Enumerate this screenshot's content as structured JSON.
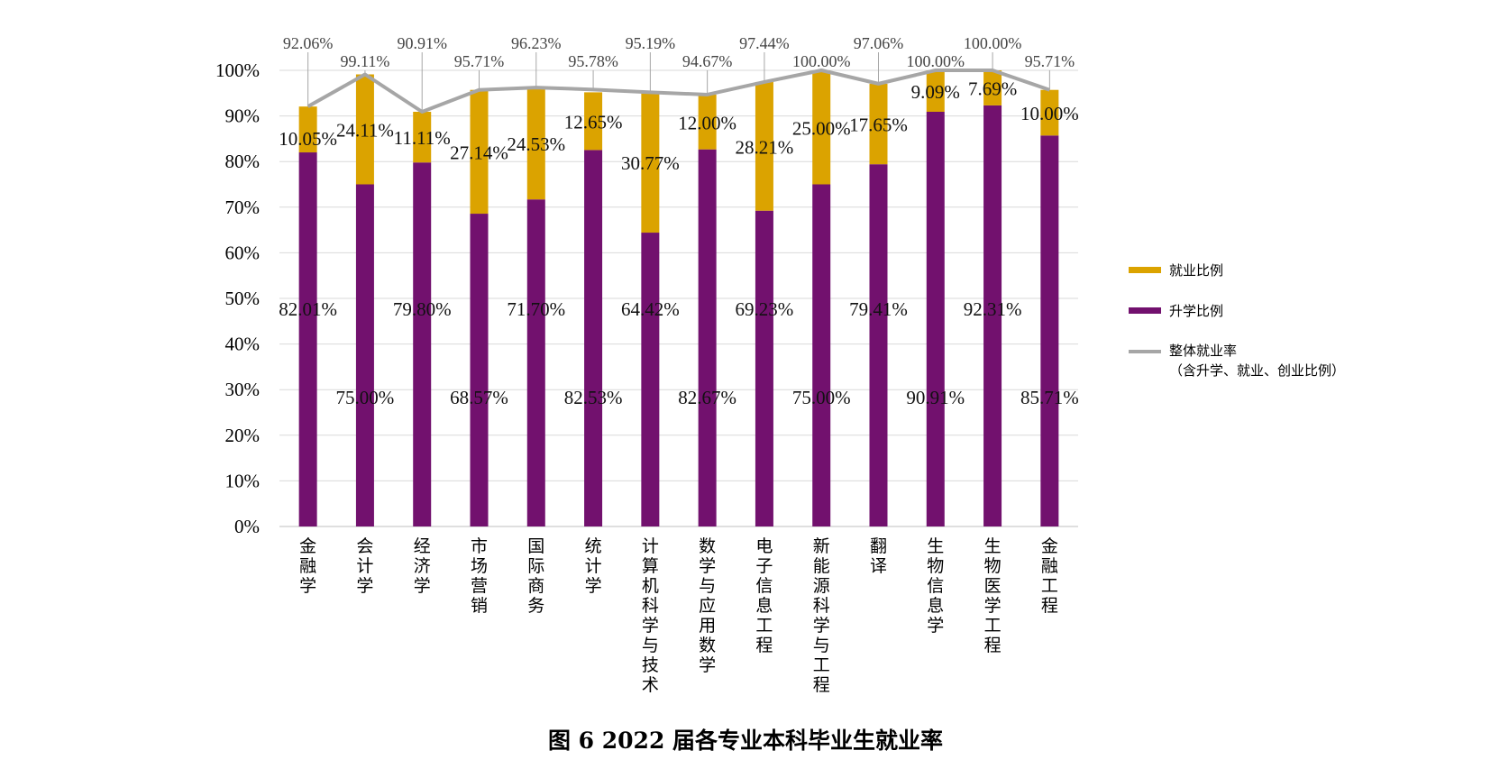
{
  "chart_data": {
    "type": "bar",
    "stacked": true,
    "title": "图 6 2022 届各专业本科毕业生就业率",
    "categories": [
      "金融学",
      "会计学",
      "经济学",
      "市场营销",
      "国际商务",
      "统计学",
      "计算机科学与技术",
      "数学与应用数学",
      "电子信息工程",
      "新能源科学与工程",
      "翻译",
      "生物信息学",
      "生物医学工程",
      "金融工程"
    ],
    "series": [
      {
        "name": "升学比例",
        "color": "#72116E",
        "values": [
          82.01,
          75.0,
          79.8,
          68.57,
          71.7,
          82.53,
          64.42,
          82.67,
          69.23,
          75.0,
          79.41,
          90.91,
          92.31,
          85.71
        ],
        "labels": [
          "82.01%",
          "75.00%",
          "79.80%",
          "68.57%",
          "71.70%",
          "82.53%",
          "64.42%",
          "82.67%",
          "69.23%",
          "75.00%",
          "79.41%",
          "90.91%",
          "92.31%",
          "85.71%"
        ]
      },
      {
        "name": "就业比例",
        "color": "#DBA300",
        "values": [
          10.05,
          24.11,
          11.11,
          27.14,
          24.53,
          12.65,
          30.77,
          12.0,
          28.21,
          25.0,
          17.65,
          9.09,
          7.69,
          10.0
        ],
        "labels": [
          "10.05%",
          "24.11%",
          "11.11%",
          "27.14%",
          "24.53%",
          "12.65%",
          "30.77%",
          "12.00%",
          "28.21%",
          "25.00%",
          "17.65%",
          "9.09%",
          "7.69%",
          "10.00%"
        ]
      },
      {
        "name": "整体就业率",
        "name_line2": "（含升学、就业、创业比例）",
        "type": "line",
        "color": "#A6A6A6",
        "values": [
          92.06,
          99.11,
          90.91,
          95.71,
          96.23,
          95.78,
          95.19,
          94.67,
          97.44,
          100.0,
          97.06,
          100.0,
          100.0,
          95.71
        ],
        "labels": [
          "92.06%",
          "99.11%",
          "90.91%",
          "95.71%",
          "96.23%",
          "95.78%",
          "95.19%",
          "94.67%",
          "97.44%",
          "100.00%",
          "97.06%",
          "100.00%",
          "100.00%",
          "95.71%"
        ]
      }
    ],
    "ylim": [
      0,
      100
    ],
    "yticks": [
      "0%",
      "10%",
      "20%",
      "30%",
      "40%",
      "50%",
      "60%",
      "70%",
      "80%",
      "90%",
      "100%"
    ],
    "grid": true,
    "legend_position": "right"
  }
}
